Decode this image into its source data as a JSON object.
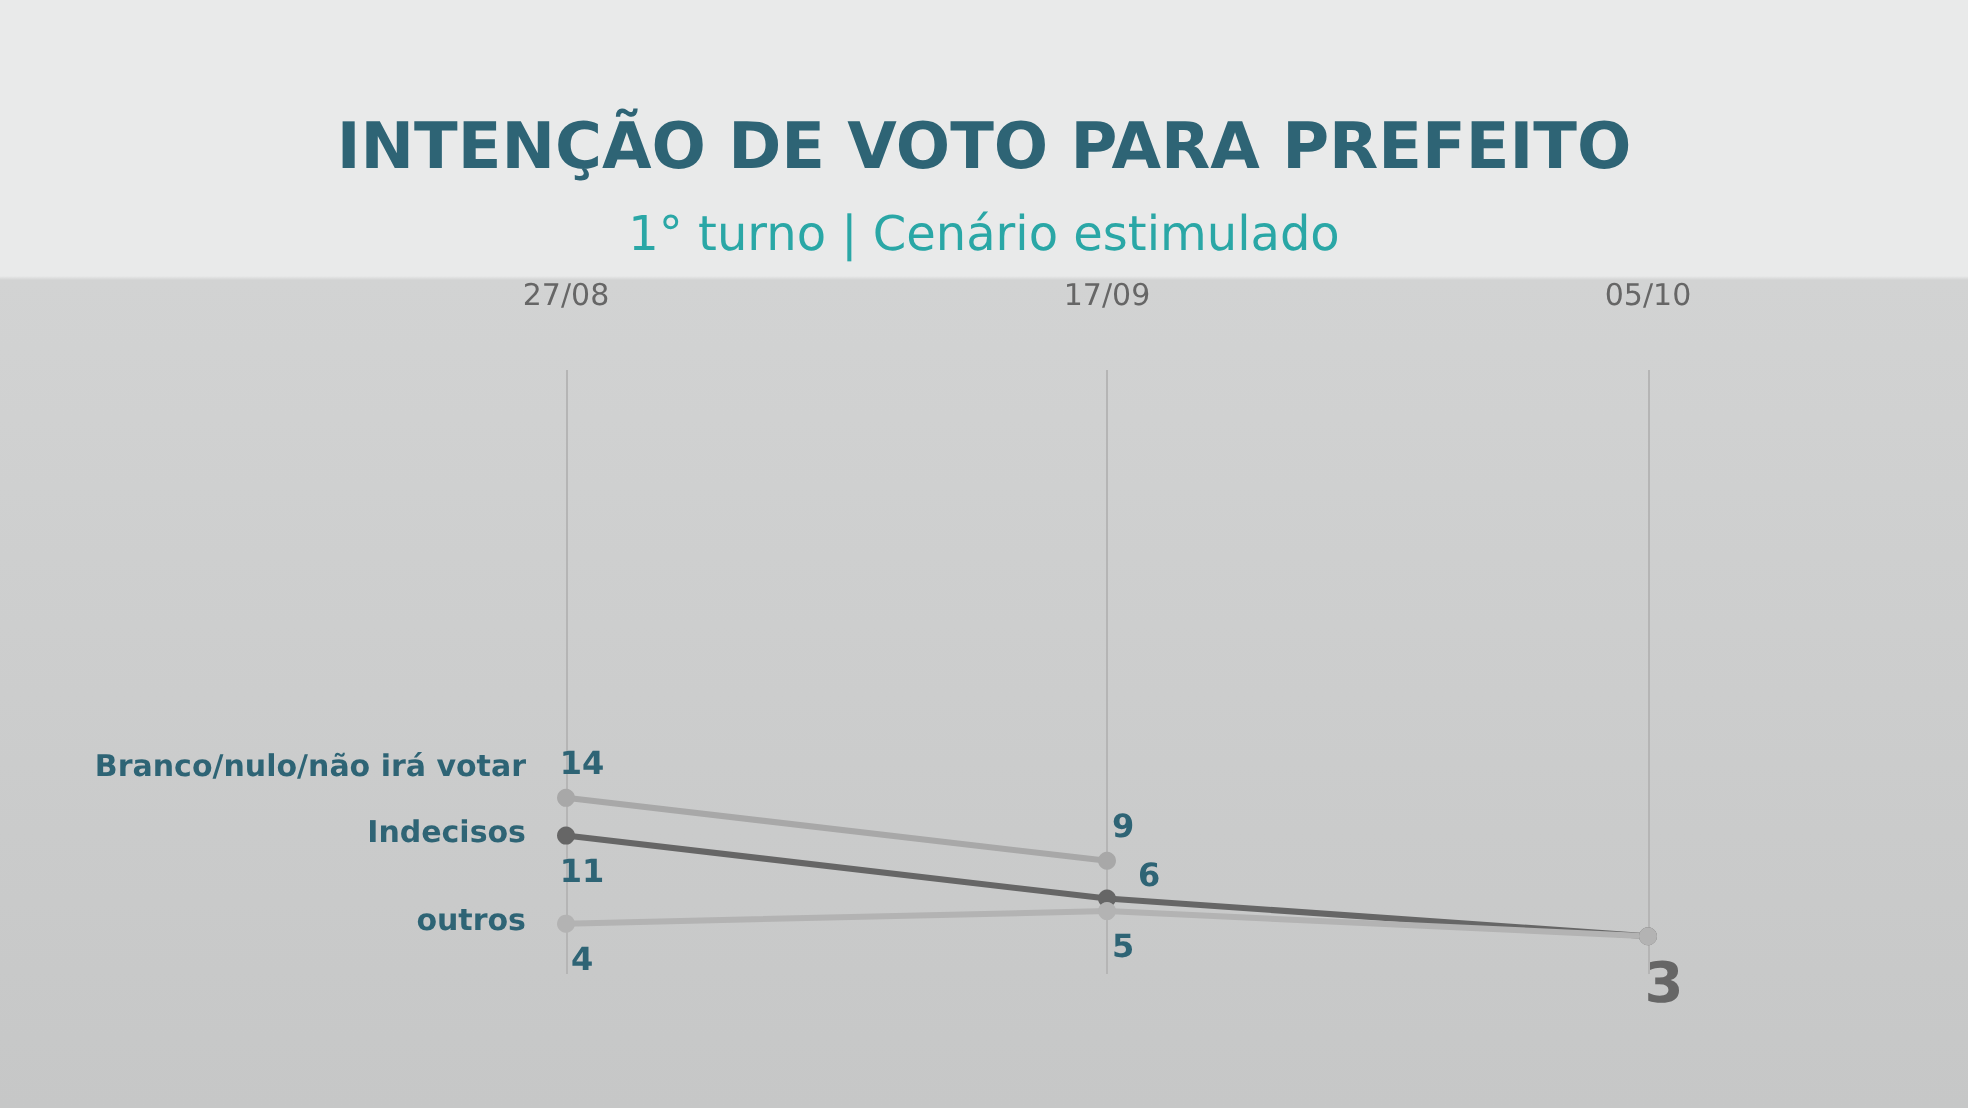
{
  "chart_data": {
    "type": "line",
    "title": "INTENÇÃO DE VOTO PARA PREFEITO",
    "subtitle": "1° turno | Cenário estimulado",
    "categories": [
      "27/08",
      "17/09",
      "05/10"
    ],
    "series": [
      {
        "name": "Branco/nulo/não irá votar",
        "color": "#a8a8a8",
        "values": [
          14,
          9,
          null
        ],
        "value_labels": [
          "14",
          "9",
          null
        ]
      },
      {
        "name": "Indecisos",
        "color": "#666666",
        "values": [
          11,
          6,
          3
        ],
        "value_labels": [
          "11",
          "6",
          "3"
        ]
      },
      {
        "name": "outros",
        "color": "#b3b3b3",
        "values": [
          4,
          5,
          3
        ],
        "value_labels": [
          "4",
          "5",
          null
        ]
      }
    ],
    "ylim": [
      0,
      48
    ],
    "grid": "x",
    "tick_labels": "x",
    "marker": "circle",
    "line_style": "solid",
    "legend": false
  }
}
